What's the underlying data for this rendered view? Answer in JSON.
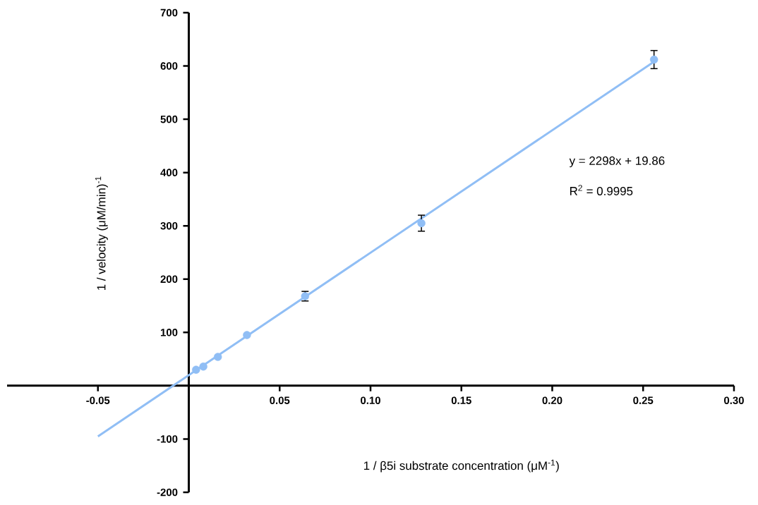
{
  "chart_data": {
    "type": "scatter",
    "xlabel": "1 / β5i substrate concentration (μM$^{-1}$)",
    "ylabel": "1 / velocity (μM/min)$^{-1}$",
    "annotations": [
      "y = 2298x + 19.86",
      "R$^{2}$ = 0.9995"
    ],
    "xlim": [
      -0.1,
      0.3
    ],
    "ylim": [
      -200,
      700
    ],
    "xticks": [
      {
        "value": -0.05,
        "label": "-0.05"
      },
      {
        "value": 0.05,
        "label": "0.05"
      },
      {
        "value": 0.1,
        "label": "0.10"
      },
      {
        "value": 0.15,
        "label": "0.15"
      },
      {
        "value": 0.2,
        "label": "0.20"
      },
      {
        "value": 0.25,
        "label": "0.25"
      },
      {
        "value": 0.3,
        "label": "0.30"
      }
    ],
    "yticks": [
      -200,
      -100,
      100,
      200,
      300,
      400,
      500,
      600,
      700
    ],
    "series": [
      {
        "type": "line",
        "color": "#90bef5",
        "marker": "none",
        "x": [
          -0.05,
          0.256
        ],
        "values": [
          -95,
          608
        ]
      },
      {
        "color": "#90bef5",
        "marker": "circle",
        "x": [
          0.004,
          0.008,
          0.016,
          0.032,
          0.064,
          0.128,
          0.256
        ],
        "values": [
          30,
          36,
          54,
          95,
          168,
          305,
          612
        ],
        "errors": [
          null,
          null,
          null,
          null,
          9,
          15,
          17
        ]
      }
    ]
  }
}
